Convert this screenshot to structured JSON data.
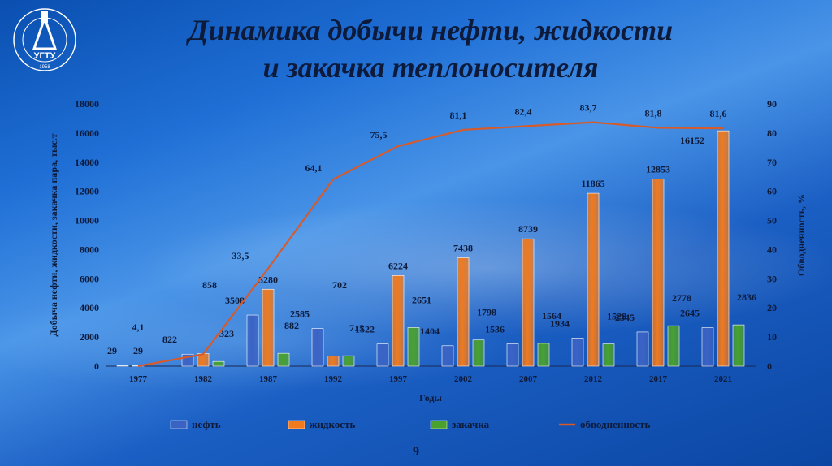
{
  "slide": {
    "title_line1": "Динамика добычи нефти, жидкости",
    "title_line2": "и закачка теплоносителя",
    "page_number": "9",
    "logo_ring_text": "УХТИНСКИЙ ГОСУДАРСТВЕННЫЙ ТЕХНИЧЕСКИЙ УНИВЕРСИТЕТ",
    "logo_mark": "УГТУ",
    "logo_year": "1958"
  },
  "colors": {
    "oil": "#3b63c4",
    "liquid": "#f07a1e",
    "injection": "#4aa12e",
    "watercut": "#d65a2a",
    "text": "#0d1a3a"
  },
  "chart_data": {
    "type": "bar",
    "categories": [
      "1977",
      "1982",
      "1987",
      "1992",
      "1997",
      "2002",
      "2007",
      "2012",
      "2017",
      "2021"
    ],
    "series": [
      {
        "name": "нефть",
        "values": [
          29,
          822,
          3508,
          2585,
          1522,
          1404,
          1536,
          1934,
          2345,
          2645
        ],
        "labels": [
          "29",
          "822",
          "3508",
          "2585",
          "1522",
          "1404",
          "1536",
          "1934",
          "2345",
          "2645"
        ]
      },
      {
        "name": "жидкость",
        "values": [
          29,
          858,
          5280,
          702,
          6224,
          7438,
          8739,
          11865,
          12853,
          16152
        ],
        "labels": [
          "29",
          "858",
          "5280",
          "702",
          "6224",
          "7438",
          "8739",
          "11865",
          "12853",
          "16152"
        ]
      },
      {
        "name": "закачка",
        "values": [
          0,
          323,
          882,
          715,
          2651,
          1798,
          1564,
          1528,
          2778,
          2836
        ],
        "labels": [
          "",
          "323",
          "882",
          "715",
          "2651",
          "1798",
          "1564",
          "1528",
          "2778",
          "2836"
        ]
      },
      {
        "name": "обводненность",
        "type": "line",
        "axis": "right",
        "values": [
          0,
          4.1,
          33.5,
          64.1,
          75.5,
          81.1,
          82.4,
          83.7,
          81.8,
          81.6
        ],
        "labels": [
          "",
          "4,1",
          "33,5",
          "64,1",
          "75,5",
          "81,1",
          "82,4",
          "83,7",
          "81,8",
          "81,6"
        ]
      }
    ],
    "ylabel": "Добыча нефти, жидкости, закачка пара, тыс.т",
    "y2label": "Обводненность, %",
    "xlabel": "Годы",
    "ylim": [
      0,
      18000
    ],
    "y2lim": [
      0,
      90
    ],
    "yticks": [
      "0",
      "2000",
      "4000",
      "6000",
      "8000",
      "10000",
      "12000",
      "14000",
      "16000",
      "18000"
    ],
    "y2ticks": [
      "0",
      "10",
      "20",
      "30",
      "40",
      "50",
      "60",
      "70",
      "80",
      "90"
    ],
    "legend_position": "bottom",
    "grid": false
  }
}
